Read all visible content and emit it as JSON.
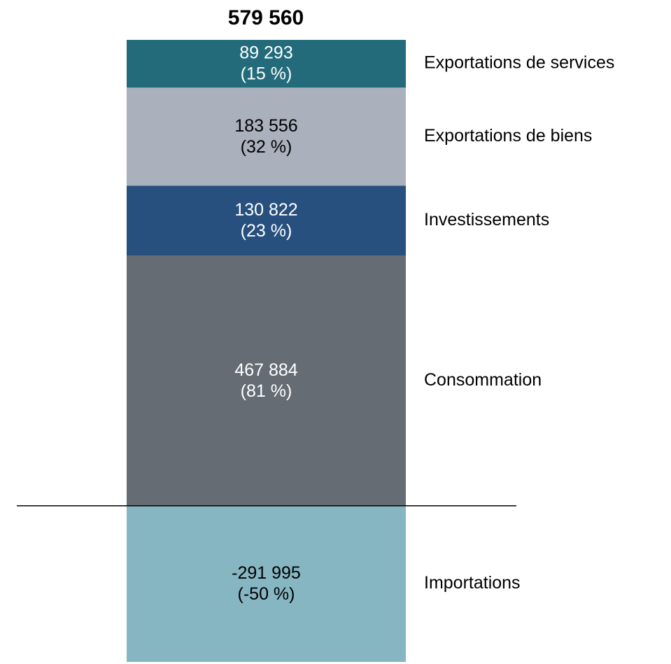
{
  "chart_data": {
    "type": "stacked_bar",
    "total": 579560,
    "total_label": "579 560",
    "series": [
      {
        "name": "Consommation",
        "color": "#666c74",
        "label_color": "#ffffff",
        "values": [
          467884
        ],
        "value_labels": [
          "467 884"
        ],
        "percent": [
          81
        ],
        "percent_labels": [
          "(81 %)"
        ]
      },
      {
        "name": "Investissements",
        "color": "#27507e",
        "label_color": "#ffffff",
        "values": [
          130822
        ],
        "value_labels": [
          "130 822"
        ],
        "percent": [
          23
        ],
        "percent_labels": [
          "(23 %)"
        ]
      },
      {
        "name": "Exportations de biens",
        "color": "#aab0bc",
        "label_color": "#000000",
        "values": [
          183556
        ],
        "value_labels": [
          "183 556"
        ],
        "percent": [
          32
        ],
        "percent_labels": [
          "(32 %)"
        ]
      },
      {
        "name": "Exportations de services",
        "color": "#236b7b",
        "label_color": "#ffffff",
        "values": [
          89293
        ],
        "value_labels": [
          "89 293"
        ],
        "percent": [
          15
        ],
        "percent_labels": [
          "(15 %)"
        ]
      },
      {
        "name": "Importations",
        "color": "#87b6c3",
        "label_color": "#000000",
        "values": [
          -291995
        ],
        "value_labels": [
          "-291 995"
        ],
        "percent": [
          -50
        ],
        "percent_labels": [
          "(-50 %)"
        ]
      }
    ]
  }
}
